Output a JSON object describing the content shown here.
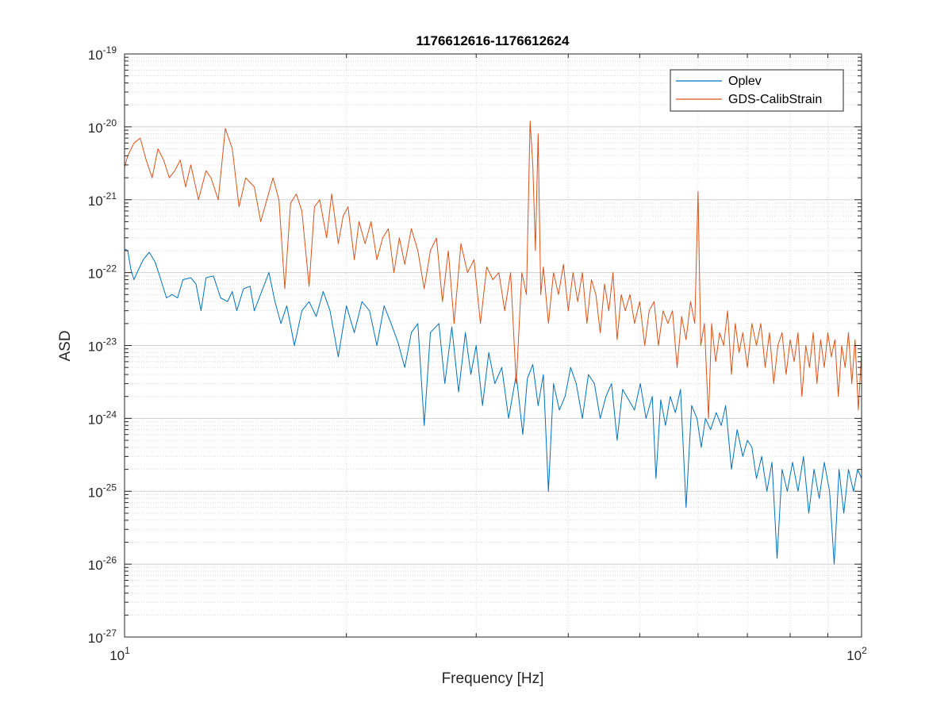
{
  "chart_data": {
    "type": "line",
    "title": "1176612616-1176612624",
    "xlabel": "Frequency [Hz]",
    "ylabel": "ASD",
    "xscale": "log",
    "yscale": "log",
    "xlim": [
      10,
      100
    ],
    "ylim": [
      1e-27,
      1e-19
    ],
    "grid": true,
    "minor_grid": true,
    "legend_position": "top-right",
    "x_ticks": [
      {
        "value": 10,
        "base": "10",
        "exp": "1"
      },
      {
        "value": 100,
        "base": "10",
        "exp": "2"
      }
    ],
    "y_ticks": [
      {
        "value": 1e-19,
        "base": "10",
        "exp": "-19"
      },
      {
        "value": 1e-20,
        "base": "10",
        "exp": "-20"
      },
      {
        "value": 1e-21,
        "base": "10",
        "exp": "-21"
      },
      {
        "value": 1e-22,
        "base": "10",
        "exp": "-22"
      },
      {
        "value": 1e-23,
        "base": "10",
        "exp": "-23"
      },
      {
        "value": 1e-24,
        "base": "10",
        "exp": "-24"
      },
      {
        "value": 1e-25,
        "base": "10",
        "exp": "-25"
      },
      {
        "value": 1e-26,
        "base": "10",
        "exp": "-26"
      },
      {
        "value": 1e-27,
        "base": "10",
        "exp": "-27"
      }
    ],
    "series": [
      {
        "name": "Oplev",
        "color": "#0072BD",
        "points": [
          [
            10.0,
            2.1e-22
          ],
          [
            10.1,
            2e-22
          ],
          [
            10.2,
            1.1e-22
          ],
          [
            10.3,
            8e-23
          ],
          [
            10.4,
            1e-22
          ],
          [
            10.6,
            1.5e-22
          ],
          [
            10.8,
            1.9e-22
          ],
          [
            11.0,
            1.4e-22
          ],
          [
            11.2,
            8e-23
          ],
          [
            11.4,
            4.5e-23
          ],
          [
            11.6,
            5e-23
          ],
          [
            11.8,
            4.5e-23
          ],
          [
            12.0,
            8e-23
          ],
          [
            12.3,
            8.5e-23
          ],
          [
            12.5,
            7e-23
          ],
          [
            12.7,
            3e-23
          ],
          [
            12.9,
            8.5e-23
          ],
          [
            13.2,
            9e-23
          ],
          [
            13.5,
            4.5e-23
          ],
          [
            13.8,
            4e-23
          ],
          [
            14.0,
            5.5e-23
          ],
          [
            14.2,
            3e-23
          ],
          [
            14.5,
            6e-23
          ],
          [
            14.8,
            6.5e-23
          ],
          [
            15.0,
            3e-23
          ],
          [
            15.4,
            6e-23
          ],
          [
            15.7,
            1e-22
          ],
          [
            16.0,
            4e-23
          ],
          [
            16.3,
            2e-23
          ],
          [
            16.6,
            3.5e-23
          ],
          [
            17.0,
            1e-23
          ],
          [
            17.4,
            3e-23
          ],
          [
            17.8,
            4e-23
          ],
          [
            18.2,
            2.5e-23
          ],
          [
            18.6,
            5.5e-23
          ],
          [
            19.0,
            3e-23
          ],
          [
            19.5,
            7e-24
          ],
          [
            20.0,
            3.5e-23
          ],
          [
            20.5,
            1.5e-23
          ],
          [
            21.0,
            4e-23
          ],
          [
            21.5,
            3e-23
          ],
          [
            22.0,
            1e-23
          ],
          [
            22.5,
            3.5e-23
          ],
          [
            23.0,
            2e-23
          ],
          [
            23.5,
            1.1e-23
          ],
          [
            24.0,
            5e-24
          ],
          [
            24.5,
            1.5e-23
          ],
          [
            25.0,
            2e-23
          ],
          [
            25.5,
            8e-25
          ],
          [
            26.0,
            1.5e-23
          ],
          [
            26.7,
            2e-23
          ],
          [
            27.2,
            3e-24
          ],
          [
            27.8,
            1.8e-23
          ],
          [
            28.4,
            2.3e-24
          ],
          [
            29.0,
            1.5e-23
          ],
          [
            29.5,
            4e-24
          ],
          [
            30.0,
            1e-23
          ],
          [
            30.6,
            1.5e-24
          ],
          [
            31.2,
            8e-24
          ],
          [
            31.8,
            3e-24
          ],
          [
            32.5,
            5e-24
          ],
          [
            33.2,
            1e-24
          ],
          [
            34.0,
            4e-24
          ],
          [
            34.7,
            6e-25
          ],
          [
            35.2,
            3.5e-24
          ],
          [
            35.8,
            5.5e-24
          ],
          [
            36.4,
            1.5e-24
          ],
          [
            37.0,
            4e-24
          ],
          [
            37.6,
            1e-25
          ],
          [
            38.2,
            3e-24
          ],
          [
            38.9,
            1.3e-24
          ],
          [
            39.6,
            2e-24
          ],
          [
            40.3,
            5e-24
          ],
          [
            41.0,
            3e-24
          ],
          [
            41.8,
            1e-24
          ],
          [
            42.6,
            4e-24
          ],
          [
            43.4,
            3e-24
          ],
          [
            44.2,
            1e-24
          ],
          [
            45.0,
            2e-24
          ],
          [
            45.8,
            3e-24
          ],
          [
            46.6,
            5e-25
          ],
          [
            47.4,
            2.5e-24
          ],
          [
            48.3,
            1.8e-24
          ],
          [
            49.2,
            1.3e-24
          ],
          [
            50.1,
            3e-24
          ],
          [
            51.0,
            1e-24
          ],
          [
            52.0,
            2e-24
          ],
          [
            52.6,
            1.5e-25
          ],
          [
            53.4,
            1.8e-24
          ],
          [
            54.2,
            8e-25
          ],
          [
            55.0,
            2e-24
          ],
          [
            55.9,
            1.2e-24
          ],
          [
            56.8,
            2.5e-24
          ],
          [
            57.8,
            6e-26
          ],
          [
            58.8,
            1.5e-24
          ],
          [
            59.8,
            1e-24
          ],
          [
            60.6,
            4e-25
          ],
          [
            61.4,
            1e-24
          ],
          [
            62.4,
            7e-25
          ],
          [
            63.5,
            1.2e-24
          ],
          [
            64.5,
            8e-25
          ],
          [
            65.4,
            1.5e-24
          ],
          [
            66.6,
            2e-25
          ],
          [
            67.8,
            7e-25
          ],
          [
            69.0,
            3e-25
          ],
          [
            70.0,
            5e-25
          ],
          [
            71.0,
            4e-25
          ],
          [
            72.0,
            1.5e-25
          ],
          [
            73.2,
            3e-25
          ],
          [
            74.4,
            1e-25
          ],
          [
            75.6,
            2.5e-25
          ],
          [
            76.8,
            1.2e-26
          ],
          [
            78.0,
            2e-25
          ],
          [
            79.3,
            1e-25
          ],
          [
            80.6,
            2.5e-25
          ],
          [
            82.0,
            1e-25
          ],
          [
            83.4,
            3e-25
          ],
          [
            84.8,
            5e-26
          ],
          [
            86.2,
            2e-25
          ],
          [
            87.6,
            8e-26
          ],
          [
            89.0,
            2.5e-25
          ],
          [
            90.5,
            1e-25
          ],
          [
            91.8,
            1e-26
          ],
          [
            93.2,
            2e-25
          ],
          [
            94.6,
            5e-26
          ],
          [
            96.0,
            2e-25
          ],
          [
            97.5,
            1e-25
          ],
          [
            98.8,
            2e-25
          ],
          [
            100.0,
            1.5e-25
          ]
        ]
      },
      {
        "name": "GDS-CalibStrain",
        "color": "#D95319",
        "points": [
          [
            10.0,
            2.8e-21
          ],
          [
            10.1,
            4e-21
          ],
          [
            10.3,
            6e-21
          ],
          [
            10.5,
            7e-21
          ],
          [
            10.7,
            3.5e-21
          ],
          [
            10.9,
            2e-21
          ],
          [
            11.1,
            5e-21
          ],
          [
            11.3,
            3.5e-21
          ],
          [
            11.5,
            2e-21
          ],
          [
            11.7,
            2.5e-21
          ],
          [
            11.9,
            3.5e-21
          ],
          [
            12.1,
            1.5e-21
          ],
          [
            12.3,
            3e-21
          ],
          [
            12.6,
            1e-21
          ],
          [
            12.9,
            2.5e-21
          ],
          [
            13.1,
            2e-21
          ],
          [
            13.4,
            1e-21
          ],
          [
            13.7,
            9.5e-21
          ],
          [
            14.0,
            5e-21
          ],
          [
            14.3,
            8e-22
          ],
          [
            14.6,
            2e-21
          ],
          [
            15.0,
            1.5e-21
          ],
          [
            15.3,
            5e-22
          ],
          [
            15.6,
            1e-21
          ],
          [
            15.9,
            2e-21
          ],
          [
            16.2,
            1e-21
          ],
          [
            16.5,
            6e-23
          ],
          [
            16.8,
            9e-22
          ],
          [
            17.1,
            1.2e-21
          ],
          [
            17.4,
            7e-22
          ],
          [
            17.8,
            6.5e-23
          ],
          [
            18.1,
            8e-22
          ],
          [
            18.4,
            1e-21
          ],
          [
            18.8,
            3e-22
          ],
          [
            19.1,
            1.2e-21
          ],
          [
            19.5,
            2.5e-22
          ],
          [
            19.8,
            6e-22
          ],
          [
            20.1,
            8e-22
          ],
          [
            20.5,
            1.5e-22
          ],
          [
            20.8,
            5e-22
          ],
          [
            21.2,
            2.5e-22
          ],
          [
            21.6,
            5e-22
          ],
          [
            22.0,
            1.5e-22
          ],
          [
            22.4,
            3e-22
          ],
          [
            22.8,
            4e-22
          ],
          [
            23.2,
            1e-22
          ],
          [
            23.6,
            3e-22
          ],
          [
            24.0,
            1.3e-22
          ],
          [
            24.5,
            4e-22
          ],
          [
            25.0,
            2e-22
          ],
          [
            25.5,
            6e-23
          ],
          [
            26.0,
            2e-22
          ],
          [
            26.5,
            3e-22
          ],
          [
            27.0,
            4e-23
          ],
          [
            27.5,
            2e-22
          ],
          [
            28.0,
            2e-23
          ],
          [
            28.6,
            2.5e-22
          ],
          [
            29.2,
            1e-22
          ],
          [
            29.8,
            1.5e-22
          ],
          [
            30.4,
            2e-23
          ],
          [
            31.0,
            1.2e-22
          ],
          [
            31.6,
            8e-23
          ],
          [
            32.2,
            1e-22
          ],
          [
            32.8,
            3e-23
          ],
          [
            33.4,
            1e-22
          ],
          [
            34.0,
            3e-24
          ],
          [
            34.6,
            1e-22
          ],
          [
            35.1,
            5e-23
          ],
          [
            35.5,
            1.2e-20
          ],
          [
            35.8,
            3e-21
          ],
          [
            36.1,
            2e-22
          ],
          [
            36.4,
            8e-21
          ],
          [
            36.7,
            5e-23
          ],
          [
            37.0,
            1.2e-22
          ],
          [
            37.6,
            2e-23
          ],
          [
            38.2,
            1e-22
          ],
          [
            38.8,
            5e-23
          ],
          [
            39.4,
            1.3e-22
          ],
          [
            40.0,
            3e-23
          ],
          [
            40.6,
            1e-22
          ],
          [
            41.2,
            4e-23
          ],
          [
            41.8,
            1e-22
          ],
          [
            42.4,
            2e-23
          ],
          [
            43.0,
            8e-23
          ],
          [
            43.6,
            5e-23
          ],
          [
            44.2,
            1.5e-23
          ],
          [
            44.8,
            7e-23
          ],
          [
            45.4,
            3e-23
          ],
          [
            46.0,
            1e-22
          ],
          [
            46.6,
            1.2e-23
          ],
          [
            47.2,
            5e-23
          ],
          [
            47.8,
            3e-23
          ],
          [
            48.5,
            5e-23
          ],
          [
            49.2,
            2e-23
          ],
          [
            50.0,
            4e-23
          ],
          [
            50.8,
            1e-23
          ],
          [
            51.5,
            3e-23
          ],
          [
            52.3,
            4e-23
          ],
          [
            53.0,
            1e-23
          ],
          [
            53.8,
            3e-23
          ],
          [
            54.6,
            2e-23
          ],
          [
            55.4,
            3e-23
          ],
          [
            56.2,
            5e-24
          ],
          [
            57.0,
            2.5e-23
          ],
          [
            57.8,
            1.2e-23
          ],
          [
            58.6,
            4e-23
          ],
          [
            59.4,
            2e-23
          ],
          [
            60.0,
            1.3e-21
          ],
          [
            60.5,
            1e-23
          ],
          [
            61.2,
            2e-23
          ],
          [
            62.0,
            1e-24
          ],
          [
            62.6,
            2e-23
          ],
          [
            63.4,
            6e-24
          ],
          [
            64.2,
            1.5e-23
          ],
          [
            65.0,
            1e-23
          ],
          [
            65.8,
            3e-23
          ],
          [
            66.6,
            4e-24
          ],
          [
            67.4,
            2e-23
          ],
          [
            68.2,
            8e-24
          ],
          [
            69.0,
            1.5e-23
          ],
          [
            70.0,
            5e-24
          ],
          [
            71.0,
            2e-23
          ],
          [
            72.0,
            1e-23
          ],
          [
            73.0,
            2e-23
          ],
          [
            74.0,
            5e-24
          ],
          [
            75.0,
            1.5e-23
          ],
          [
            76.0,
            3e-24
          ],
          [
            77.0,
            1e-23
          ],
          [
            78.0,
            1.5e-23
          ],
          [
            79.0,
            4e-24
          ],
          [
            80.0,
            1.2e-23
          ],
          [
            81.0,
            6e-24
          ],
          [
            82.0,
            1.5e-23
          ],
          [
            83.0,
            2e-24
          ],
          [
            84.0,
            1e-23
          ],
          [
            85.0,
            5e-24
          ],
          [
            86.0,
            1.5e-23
          ],
          [
            87.0,
            3e-24
          ],
          [
            88.0,
            1.2e-23
          ],
          [
            89.0,
            5e-24
          ],
          [
            90.0,
            1.5e-23
          ],
          [
            91.0,
            7e-24
          ],
          [
            92.0,
            1.2e-23
          ],
          [
            93.0,
            2e-24
          ],
          [
            94.0,
            1e-23
          ],
          [
            95.0,
            5e-24
          ],
          [
            96.0,
            1.5e-23
          ],
          [
            97.0,
            3e-24
          ],
          [
            98.0,
            1.2e-23
          ],
          [
            99.0,
            1.3e-24
          ],
          [
            100.0,
            8e-24
          ]
        ]
      }
    ]
  }
}
